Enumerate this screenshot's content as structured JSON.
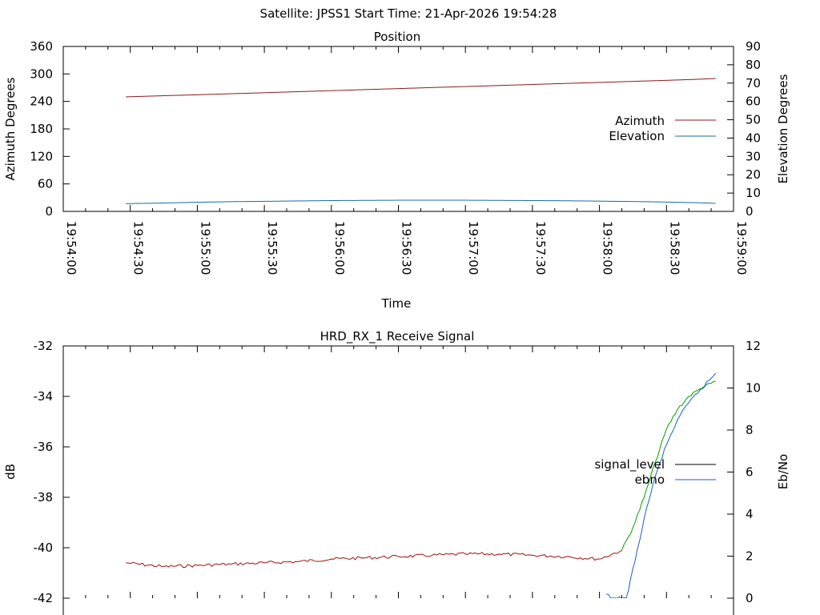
{
  "header": {
    "title": "Satellite: JPSS1    Start Time: 21-Apr-2026 19:54:28"
  },
  "chart_data": [
    {
      "type": "line",
      "title": "Position",
      "xlabel": "Time",
      "ylabel": "Azimuth Degrees",
      "y2label": "Elevation Degrees",
      "xlim": [
        "19:54:00",
        "19:59:00"
      ],
      "x_ticks": [
        "19:54:00",
        "19:54:30",
        "19:55:00",
        "19:55:30",
        "19:56:00",
        "19:56:30",
        "19:57:00",
        "19:57:30",
        "19:58:00",
        "19:58:30",
        "19:59:00"
      ],
      "ylim": [
        0,
        360
      ],
      "y_ticks": [
        "0",
        "60",
        "120",
        "180",
        "240",
        "300",
        "360"
      ],
      "y2lim": [
        0,
        90
      ],
      "y2_ticks": [
        "0",
        "10",
        "20",
        "30",
        "40",
        "50",
        "60",
        "70",
        "80",
        "90"
      ],
      "legend_position": "right",
      "grid": false,
      "series": [
        {
          "name": "Azimuth",
          "axis": "y1",
          "color": "#8b1a1a",
          "x": [
            "19:54:28",
            "19:54:45",
            "19:55:00",
            "19:55:15",
            "19:55:30",
            "19:55:45",
            "19:56:00",
            "19:56:15",
            "19:56:30",
            "19:56:45",
            "19:57:00",
            "19:57:15",
            "19:57:30",
            "19:57:45",
            "19:58:00",
            "19:58:15",
            "19:58:30",
            "19:58:45",
            "19:58:52"
          ],
          "values": [
            250,
            252.5,
            254.5,
            256.8,
            259,
            261.3,
            263.5,
            265.8,
            268,
            270.3,
            272.5,
            274.8,
            277,
            279.3,
            281.5,
            283.8,
            286,
            288.5,
            290
          ]
        },
        {
          "name": "Elevation",
          "axis": "y2",
          "color": "#1a6aa0",
          "x": [
            "19:54:28",
            "19:54:45",
            "19:55:00",
            "19:55:15",
            "19:55:30",
            "19:55:45",
            "19:56:00",
            "19:56:15",
            "19:56:30",
            "19:56:45",
            "19:57:00",
            "19:57:15",
            "19:57:30",
            "19:57:45",
            "19:58:00",
            "19:58:15",
            "19:58:30",
            "19:58:45",
            "19:58:52"
          ],
          "values": [
            4.2,
            4.6,
            5.0,
            5.3,
            5.5,
            5.7,
            5.9,
            6.0,
            6.1,
            6.1,
            6.1,
            6.0,
            5.9,
            5.8,
            5.6,
            5.4,
            5.1,
            4.7,
            4.4
          ]
        }
      ]
    },
    {
      "type": "line",
      "title": "HRD_RX_1 Receive Signal",
      "ylabel": "dB",
      "y2label": "Eb/No",
      "xlim": [
        "19:54:00",
        "19:59:00"
      ],
      "ylim": [
        -42,
        -32
      ],
      "y_ticks": [
        "-42",
        "-40",
        "-38",
        "-36",
        "-34",
        "-32"
      ],
      "y2lim": [
        0,
        12
      ],
      "y2_ticks": [
        "0",
        "2",
        "4",
        "6",
        "8",
        "10",
        "12"
      ],
      "legend_position": "right",
      "grid": false,
      "series": [
        {
          "name": "signal_level",
          "axis": "y1",
          "color": "#000000",
          "low_color": "#a01010",
          "high_color": "#00a000",
          "x": [
            "19:54:28",
            "19:54:45",
            "19:55:00",
            "19:55:15",
            "19:55:30",
            "19:55:45",
            "19:56:00",
            "19:56:15",
            "19:56:30",
            "19:56:45",
            "19:57:00",
            "19:57:15",
            "19:57:30",
            "19:57:45",
            "19:58:00",
            "19:58:10",
            "19:58:15",
            "19:58:20",
            "19:58:25",
            "19:58:30",
            "19:58:35",
            "19:58:40",
            "19:58:45",
            "19:58:52"
          ],
          "values": [
            -40.6,
            -40.75,
            -40.7,
            -40.65,
            -40.6,
            -40.55,
            -40.45,
            -40.4,
            -40.35,
            -40.3,
            -40.25,
            -40.25,
            -40.3,
            -40.35,
            -40.45,
            -40.1,
            -39.2,
            -38.0,
            -36.6,
            -35.3,
            -34.5,
            -34.0,
            -33.7,
            -33.4
          ]
        },
        {
          "name": "ebno",
          "axis": "y2",
          "color": "#1a5fc0",
          "x": [
            "19:58:03",
            "19:58:05",
            "19:58:08",
            "19:58:12",
            "19:58:16",
            "19:58:20",
            "19:58:25",
            "19:58:30",
            "19:58:35",
            "19:58:40",
            "19:58:45",
            "19:58:52"
          ],
          "values": [
            0.2,
            0,
            0,
            0,
            1.8,
            3.8,
            5.8,
            7.3,
            8.5,
            9.3,
            9.9,
            10.7
          ]
        }
      ]
    }
  ]
}
